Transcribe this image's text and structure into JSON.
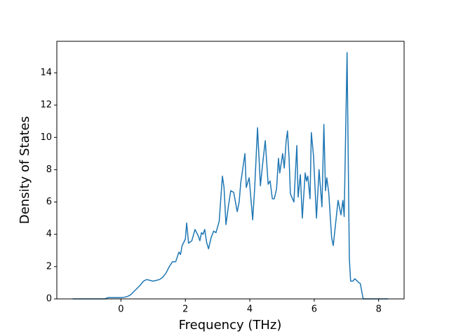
{
  "chart_data": {
    "type": "line",
    "x_label": "Frequency (THz)",
    "y_label": "Density of States",
    "xlim": [
      -1.99,
      8.79
    ],
    "ylim": [
      0,
      15.95
    ],
    "xticks": [
      0,
      2,
      4,
      6,
      8
    ],
    "yticks": [
      0,
      2,
      4,
      6,
      8,
      10,
      12,
      14
    ],
    "series": [
      {
        "color": "#1f77b4",
        "x": [
          -1.5,
          -1.0,
          -0.5,
          -0.4,
          0.0,
          0.1,
          0.2,
          0.3,
          0.4,
          0.5,
          0.6,
          0.7,
          0.8,
          0.9,
          1.0,
          1.1,
          1.2,
          1.3,
          1.4,
          1.5,
          1.6,
          1.7,
          1.75,
          1.8,
          1.85,
          1.9,
          2.0,
          2.04,
          2.1,
          2.2,
          2.3,
          2.4,
          2.45,
          2.5,
          2.55,
          2.6,
          2.66,
          2.72,
          2.8,
          2.88,
          2.95,
          3.05,
          3.15,
          3.2,
          3.26,
          3.34,
          3.41,
          3.5,
          3.61,
          3.67,
          3.72,
          3.85,
          3.89,
          3.98,
          4.09,
          4.15,
          4.24,
          4.33,
          4.39,
          4.48,
          4.57,
          4.63,
          4.7,
          4.76,
          4.83,
          4.89,
          4.93,
          5.02,
          5.07,
          5.13,
          5.17,
          5.22,
          5.26,
          5.37,
          5.46,
          5.5,
          5.57,
          5.63,
          5.72,
          5.76,
          5.8,
          5.87,
          5.91,
          5.98,
          6.07,
          6.15,
          6.24,
          6.3,
          6.35,
          6.39,
          6.45,
          6.54,
          6.59,
          6.65,
          6.74,
          6.83,
          6.89,
          6.93,
          7.02,
          7.09,
          7.13,
          7.2,
          7.26,
          7.39,
          7.43,
          7.52,
          8.0,
          8.3
        ],
        "values": [
          0.0,
          0.0,
          0.0,
          0.08,
          0.08,
          0.1,
          0.15,
          0.25,
          0.45,
          0.65,
          0.85,
          1.1,
          1.2,
          1.15,
          1.1,
          1.15,
          1.2,
          1.35,
          1.6,
          2.0,
          2.3,
          2.3,
          2.6,
          2.9,
          2.75,
          3.3,
          3.7,
          4.7,
          3.45,
          3.6,
          4.3,
          3.9,
          3.6,
          4.1,
          4.0,
          4.3,
          3.5,
          3.1,
          3.8,
          4.2,
          4.1,
          4.8,
          7.6,
          6.9,
          4.6,
          5.8,
          6.7,
          6.6,
          5.4,
          6.0,
          7.2,
          9.0,
          6.9,
          7.5,
          4.9,
          6.8,
          10.6,
          7.0,
          8.2,
          9.8,
          7.1,
          7.3,
          6.2,
          6.2,
          6.8,
          8.7,
          7.8,
          9.0,
          8.1,
          9.8,
          10.4,
          8.7,
          6.5,
          6.0,
          9.5,
          6.3,
          7.7,
          5.0,
          7.8,
          7.3,
          7.6,
          6.2,
          10.3,
          8.8,
          5.0,
          8.0,
          5.7,
          10.8,
          6.7,
          7.5,
          6.6,
          3.8,
          3.3,
          4.4,
          6.1,
          5.2,
          6.1,
          5.1,
          15.25,
          2.5,
          1.1,
          1.1,
          1.25,
          1.0,
          0.95,
          0.0,
          0.0,
          0.0
        ]
      }
    ]
  }
}
